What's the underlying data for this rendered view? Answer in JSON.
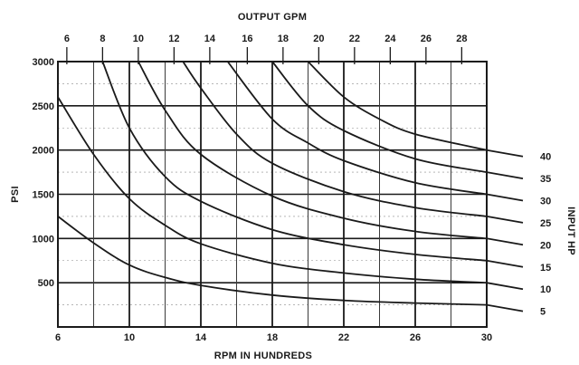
{
  "chart_data": {
    "type": "line",
    "title": "",
    "xlabel": "RPM IN HUNDREDS",
    "ylabel": "PSI",
    "top_axis_label": "OUTPUT GPM",
    "right_axis_label": "INPUT HP",
    "xlim": [
      6,
      30
    ],
    "ylim": [
      0,
      3000
    ],
    "x_ticks": [
      "6",
      "10",
      "14",
      "18",
      "22",
      "26",
      "30"
    ],
    "y_ticks": [
      "3000",
      "2500",
      "2000",
      "1500",
      "1000",
      "500"
    ],
    "gpm_ticks": [
      {
        "label": "6",
        "rpm": 6.5
      },
      {
        "label": "8",
        "rpm": 8.5
      },
      {
        "label": "10",
        "rpm": 10.5
      },
      {
        "label": "12",
        "rpm": 12.5
      },
      {
        "label": "14",
        "rpm": 14.5
      },
      {
        "label": "16",
        "rpm": 16.6
      },
      {
        "label": "18",
        "rpm": 18.6
      },
      {
        "label": "20",
        "rpm": 20.6
      },
      {
        "label": "22",
        "rpm": 22.6
      },
      {
        "label": "24",
        "rpm": 24.6
      },
      {
        "label": "26",
        "rpm": 26.6
      },
      {
        "label": "28",
        "rpm": 28.6
      }
    ],
    "grid": true,
    "series": [
      {
        "name": "5",
        "x": [
          6,
          8,
          10,
          12,
          14,
          18,
          22,
          26,
          30
        ],
        "y": [
          1250,
          950,
          700,
          560,
          470,
          360,
          300,
          270,
          250
        ]
      },
      {
        "name": "10",
        "x": [
          6,
          8,
          10,
          12,
          14,
          18,
          22,
          26,
          30
        ],
        "y": [
          2600,
          1950,
          1450,
          1150,
          940,
          720,
          610,
          540,
          500
        ]
      },
      {
        "name": "15",
        "x": [
          8.5,
          10,
          12,
          14,
          18,
          22,
          26,
          30
        ],
        "y": [
          3000,
          2250,
          1700,
          1420,
          1100,
          930,
          820,
          750
        ]
      },
      {
        "name": "20",
        "x": [
          10.5,
          12,
          14,
          18,
          22,
          26,
          30
        ],
        "y": [
          3000,
          2450,
          1950,
          1480,
          1230,
          1080,
          1000
        ]
      },
      {
        "name": "25",
        "x": [
          13,
          14,
          16,
          18,
          22,
          26,
          30
        ],
        "y": [
          3000,
          2700,
          2180,
          1850,
          1530,
          1350,
          1250
        ]
      },
      {
        "name": "30",
        "x": [
          15.5,
          18,
          20,
          22,
          26,
          30
        ],
        "y": [
          3000,
          2350,
          2080,
          1880,
          1630,
          1500
        ]
      },
      {
        "name": "35",
        "x": [
          18,
          20,
          22,
          26,
          30
        ],
        "y": [
          3000,
          2500,
          2220,
          1900,
          1750
        ]
      },
      {
        "name": "40",
        "x": [
          20,
          22,
          24,
          26,
          30
        ],
        "y": [
          3000,
          2600,
          2350,
          2180,
          2000
        ]
      }
    ]
  }
}
